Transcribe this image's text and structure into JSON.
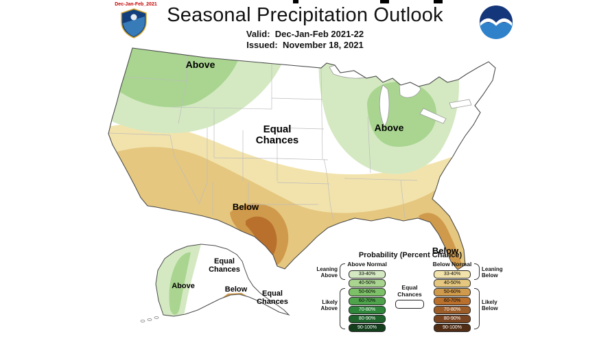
{
  "header": {
    "stamp": "Dec-Jan-Feb_2021",
    "title": "Seasonal Precipitation Outlook",
    "valid_label": "Valid:",
    "valid_value": "Dec-Jan-Feb 2021-22",
    "issued_label": "Issued:",
    "issued_value": "November 18, 2021"
  },
  "map": {
    "labels": {
      "above_nw": "Above",
      "above_gl": "Above",
      "equal_l1": "Equal",
      "equal_l2": "Chances",
      "below_tx": "Below",
      "below_fl": "Below",
      "ak_above": "Above",
      "ak_equal1_l1": "Equal",
      "ak_equal1_l2": "Chances",
      "ak_below": "Below",
      "ak_equal2_l1": "Equal",
      "ak_equal2_l2": "Chances"
    }
  },
  "colors": {
    "above_33_40": "#d4e9c2",
    "above_40_50": "#a9d590",
    "below_33_40": "#f2e3ac",
    "below_40_50": "#e5c77f",
    "below_50_60": "#d09a4c",
    "below_60_70": "#b9702c",
    "outline": "#4a4a4a",
    "state_line": "#bcbcbc",
    "water": "#ffffff"
  },
  "legend": {
    "title": "Probability (Percent Chance)",
    "above_header": "Above Normal",
    "below_header": "Below Normal",
    "ranges": [
      "33-40%",
      "40-50%",
      "50-60%",
      "60-70%",
      "70-80%",
      "80-90%",
      "90-100%"
    ],
    "above_colors": [
      "#d4e9c2",
      "#a9d590",
      "#7cc167",
      "#4fa44b",
      "#2e873a",
      "#1f632c",
      "#143f1d"
    ],
    "below_colors": [
      "#f2e3ac",
      "#e5c77f",
      "#d09a4c",
      "#b9702c",
      "#9d5d28",
      "#7a4420",
      "#512d15"
    ],
    "equal_l1": "Equal",
    "equal_l2": "Chances",
    "leaning_above_l1": "Leaning",
    "leaning_above_l2": "Above",
    "likely_above_l1": "Likely",
    "likely_above_l2": "Above",
    "leaning_below_l1": "Leaning",
    "leaning_below_l2": "Below",
    "likely_below_l1": "Likely",
    "likely_below_l2": "Below"
  }
}
